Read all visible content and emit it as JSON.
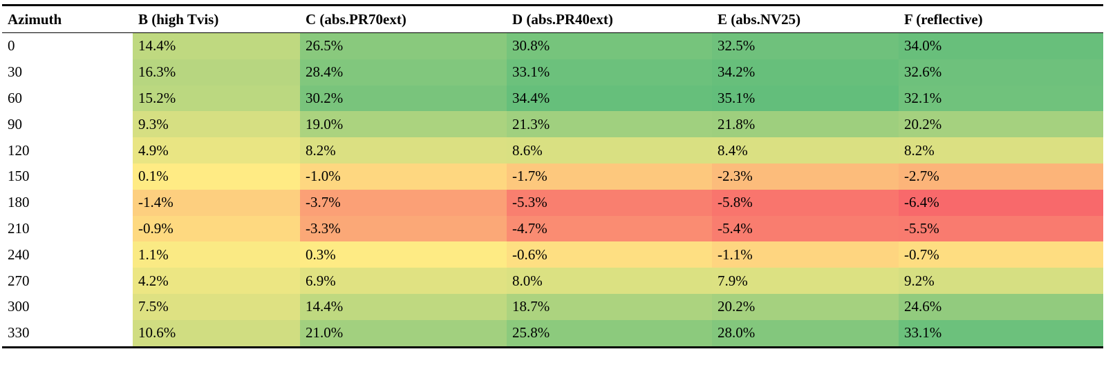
{
  "table": {
    "headers": [
      "Azimuth",
      "B (high Tvis)",
      "C (abs.PR70ext)",
      "D (abs.PR40ext)",
      "E (abs.NV25)",
      "F (reflective)"
    ],
    "rows": [
      {
        "azimuth": "0",
        "cells": [
          "14.4%",
          "26.5%",
          "30.8%",
          "32.5%",
          "34.0%"
        ]
      },
      {
        "azimuth": "30",
        "cells": [
          "16.3%",
          "28.4%",
          "33.1%",
          "34.2%",
          "32.6%"
        ]
      },
      {
        "azimuth": "60",
        "cells": [
          "15.2%",
          "30.2%",
          "34.4%",
          "35.1%",
          "32.1%"
        ]
      },
      {
        "azimuth": "90",
        "cells": [
          "9.3%",
          "19.0%",
          "21.3%",
          "21.8%",
          "20.2%"
        ]
      },
      {
        "azimuth": "120",
        "cells": [
          "4.9%",
          "8.2%",
          "8.6%",
          "8.4%",
          "8.2%"
        ]
      },
      {
        "azimuth": "150",
        "cells": [
          "0.1%",
          "-1.0%",
          "-1.7%",
          "-2.3%",
          "-2.7%"
        ]
      },
      {
        "azimuth": "180",
        "cells": [
          "-1.4%",
          "-3.7%",
          "-5.3%",
          "-5.8%",
          "-6.4%"
        ]
      },
      {
        "azimuth": "210",
        "cells": [
          "-0.9%",
          "-3.3%",
          "-4.7%",
          "-5.4%",
          "-5.5%"
        ]
      },
      {
        "azimuth": "240",
        "cells": [
          "1.1%",
          "0.3%",
          "-0.6%",
          "-1.1%",
          "-0.7%"
        ]
      },
      {
        "azimuth": "270",
        "cells": [
          "4.2%",
          "6.9%",
          "8.0%",
          "7.9%",
          "9.2%"
        ]
      },
      {
        "azimuth": "300",
        "cells": [
          "7.5%",
          "14.4%",
          "18.7%",
          "20.2%",
          "24.6%"
        ]
      },
      {
        "azimuth": "330",
        "cells": [
          "10.6%",
          "21.0%",
          "25.8%",
          "28.0%",
          "33.1%"
        ]
      }
    ]
  },
  "color_scale": {
    "min_value": -6.4,
    "mid_value": 0.0,
    "max_value": 35.1,
    "min_color": "#F8696B",
    "mid_color": "#FFEB84",
    "max_color": "#63BE7B"
  }
}
